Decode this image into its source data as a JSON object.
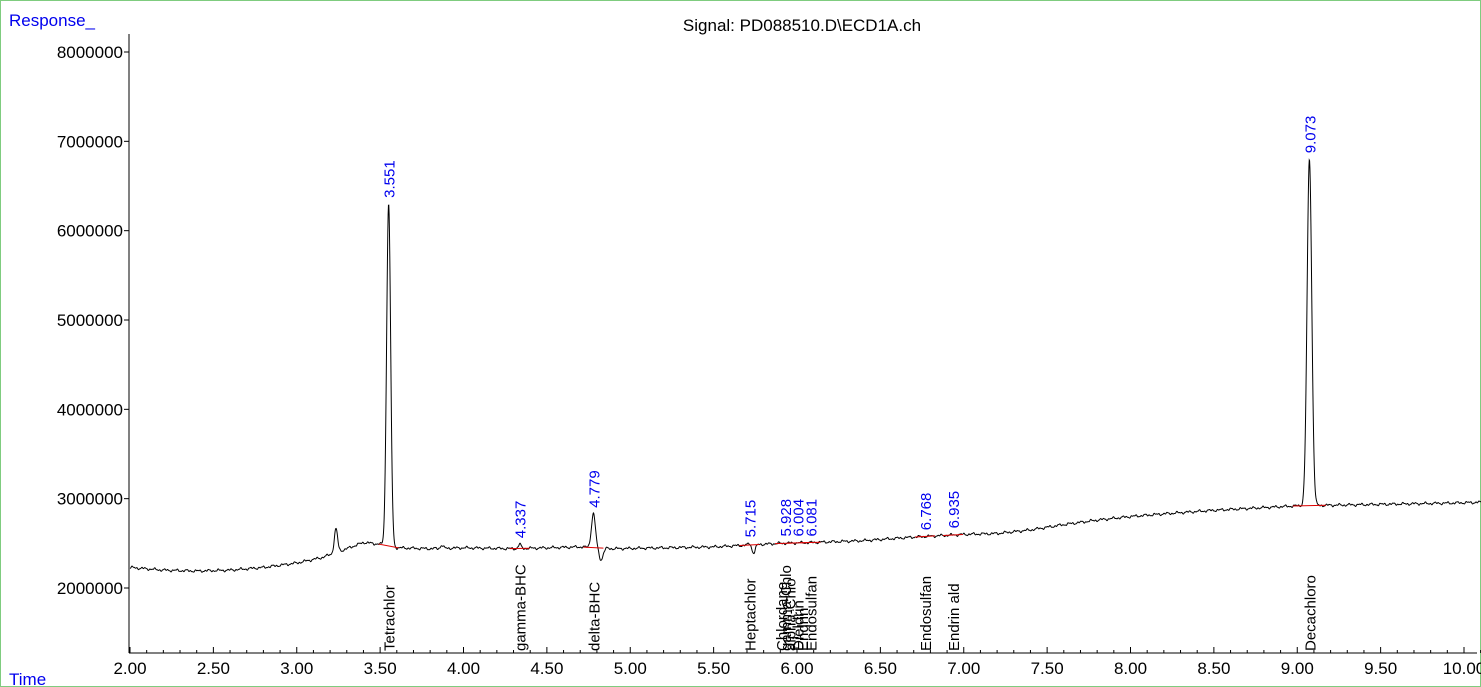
{
  "header": {
    "y_axis_name": "Response_",
    "x_axis_name": "Time",
    "signal_title": "Signal: PD088510.D\\ECD1A.ch"
  },
  "colors": {
    "axis_label_blue": "#0000ee",
    "frame_green": "#7fcc7f",
    "trace": "#000000",
    "baseline_marks": "#dd0000"
  },
  "chart_data": {
    "type": "line",
    "title": "Signal: PD088510.D\\ECD1A.ch",
    "xlabel": "Time",
    "ylabel": "Response_",
    "xlim": [
      2.0,
      10.12
    ],
    "ylim": [
      1320000,
      8350000
    ],
    "x_ticks": [
      {
        "v": 2.0,
        "t": "2.00"
      },
      {
        "v": 2.5,
        "t": "2.50"
      },
      {
        "v": 3.0,
        "t": "3.00"
      },
      {
        "v": 3.5,
        "t": "3.50"
      },
      {
        "v": 4.0,
        "t": "4.00"
      },
      {
        "v": 4.5,
        "t": "4.50"
      },
      {
        "v": 5.0,
        "t": "5.00"
      },
      {
        "v": 5.5,
        "t": "5.50"
      },
      {
        "v": 6.0,
        "t": "6.00"
      },
      {
        "v": 6.5,
        "t": "6.50"
      },
      {
        "v": 7.0,
        "t": "7.00"
      },
      {
        "v": 7.5,
        "t": "7.50"
      },
      {
        "v": 8.0,
        "t": "8.00"
      },
      {
        "v": 8.5,
        "t": "8.50"
      },
      {
        "v": 9.0,
        "t": "9.00"
      },
      {
        "v": 9.5,
        "t": "9.50"
      },
      {
        "v": 10.0,
        "t": "10.00"
      }
    ],
    "y_ticks": [
      {
        "v": 2000000,
        "t": "2000000"
      },
      {
        "v": 3000000,
        "t": "3000000"
      },
      {
        "v": 4000000,
        "t": "4000000"
      },
      {
        "v": 5000000,
        "t": "5000000"
      },
      {
        "v": 6000000,
        "t": "6000000"
      },
      {
        "v": 7000000,
        "t": "7000000"
      },
      {
        "v": 8000000,
        "t": "8000000"
      }
    ],
    "baseline": {
      "x": [
        2.0,
        2.2,
        2.4,
        2.6,
        2.8,
        3.0,
        3.15,
        3.3,
        3.4,
        3.5,
        3.6,
        3.8,
        4.0,
        4.3,
        4.5,
        4.7,
        4.9,
        5.2,
        5.5,
        5.7,
        5.9,
        6.1,
        6.4,
        6.7,
        7.0,
        7.2,
        7.4,
        7.6,
        7.8,
        8.0,
        8.2,
        8.5,
        8.8,
        9.0,
        9.3,
        9.6,
        9.9,
        10.12
      ],
      "y": [
        2230000,
        2200000,
        2190000,
        2200000,
        2230000,
        2280000,
        2340000,
        2440000,
        2510000,
        2490000,
        2450000,
        2440000,
        2450000,
        2440000,
        2450000,
        2460000,
        2440000,
        2450000,
        2460000,
        2480000,
        2500000,
        2510000,
        2530000,
        2570000,
        2600000,
        2610000,
        2650000,
        2710000,
        2760000,
        2800000,
        2830000,
        2870000,
        2900000,
        2920000,
        2930000,
        2940000,
        2950000,
        2960000
      ]
    },
    "peaks": [
      {
        "rt": 3.235,
        "height": 2660000,
        "width": 0.01
      },
      {
        "rt": 3.551,
        "height": 6300000,
        "width": 0.012
      },
      {
        "rt": 3.87,
        "height": 2480000,
        "width": 0.008
      },
      {
        "rt": 4.337,
        "height": 2490000,
        "width": 0.008
      },
      {
        "rt": 4.779,
        "height": 2830000,
        "width": 0.012
      },
      {
        "rt": 5.715,
        "height": 2500000,
        "width": 0.008
      },
      {
        "rt": 9.073,
        "height": 6800000,
        "width": 0.014
      }
    ],
    "dips": [
      {
        "rt": 4.825,
        "depth": 130000,
        "width": 0.012
      },
      {
        "rt": 5.74,
        "depth": 90000,
        "width": 0.01
      }
    ],
    "peak_labels": [
      {
        "rt": 3.551,
        "text": "3.551",
        "height": 6300000
      },
      {
        "rt": 4.337,
        "text": "4.337",
        "height": 2490000
      },
      {
        "rt": 4.779,
        "text": "4.779",
        "height": 2830000
      },
      {
        "rt": 5.715,
        "text": "5.715",
        "height": 2500000
      },
      {
        "rt": 5.928,
        "text": "5.928",
        "height": 2510000
      },
      {
        "rt": 6.004,
        "text": "6.004",
        "height": 2510000
      },
      {
        "rt": 6.081,
        "text": "6.081",
        "height": 2510000
      },
      {
        "rt": 6.768,
        "text": "6.768",
        "height": 2580000
      },
      {
        "rt": 6.935,
        "text": "6.935",
        "height": 2600000
      },
      {
        "rt": 9.073,
        "text": "9.073",
        "height": 6800000
      }
    ],
    "compound_labels": [
      {
        "rt": 3.551,
        "text": "Tetrachlor"
      },
      {
        "rt": 4.337,
        "text": "gamma-BHC"
      },
      {
        "rt": 4.779,
        "text": "delta-BHC"
      },
      {
        "rt": 5.715,
        "text": "Heptachlor"
      },
      {
        "rt": 5.905,
        "text": "Chlordane"
      },
      {
        "rt": 5.928,
        "text": "gamma-Chlo"
      },
      {
        "rt": 5.955,
        "text": "alpha-Chlo"
      },
      {
        "rt": 6.004,
        "text": "Dieldrin"
      },
      {
        "rt": 6.03,
        "text": "Endrin"
      },
      {
        "rt": 6.081,
        "text": "Endosulfan"
      },
      {
        "rt": 6.768,
        "text": "Endosulfan"
      },
      {
        "rt": 6.935,
        "text": "Endrin ald"
      },
      {
        "rt": 9.073,
        "text": "Decachloro"
      }
    ],
    "grid": false,
    "legend": "none"
  }
}
